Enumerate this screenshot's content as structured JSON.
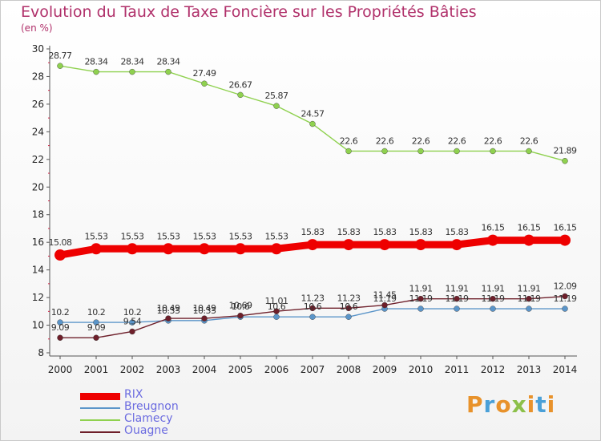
{
  "title": "Evolution du Taux de Taxe Foncière sur les Propriétés Bâties",
  "subtitle": "(en %)",
  "logo": "Proxiti",
  "chart_data": {
    "type": "line",
    "title": "Evolution du Taux de Taxe Foncière sur les Propriétés Bâties",
    "ylabel": "(en %)",
    "xlabel": "",
    "ylim": [
      8,
      30
    ],
    "yticks": [
      8,
      10,
      12,
      14,
      16,
      18,
      20,
      22,
      24,
      26,
      28,
      30
    ],
    "categories": [
      "2000",
      "2001",
      "2002",
      "2003",
      "2004",
      "2005",
      "2006",
      "2007",
      "2008",
      "2009",
      "2010",
      "2011",
      "2012",
      "2013",
      "2014"
    ],
    "series": [
      {
        "name": "RIX",
        "color": "#ee0000",
        "width": 9,
        "values": [
          15.08,
          15.53,
          15.53,
          15.53,
          15.53,
          15.53,
          15.53,
          15.83,
          15.83,
          15.83,
          15.83,
          15.83,
          16.15,
          16.15,
          16.15
        ],
        "labels": [
          "15.08",
          "15.53",
          "15.53",
          "15.53",
          "15.53",
          "15.53",
          "15.53",
          "15.83",
          "15.83",
          "15.83",
          "15.83",
          "15.83",
          "16.15",
          "16.15",
          "16.15"
        ]
      },
      {
        "name": "Breugnon",
        "color": "#5b95c9",
        "width": 1.4,
        "values": [
          10.2,
          10.2,
          10.2,
          10.33,
          10.33,
          10.6,
          10.6,
          10.6,
          10.6,
          11.19,
          11.19,
          11.19,
          11.19,
          11.19,
          11.19
        ],
        "labels": [
          "10.2",
          "10.2",
          "10.2",
          "10.33",
          "10.33",
          "10.6",
          "10.6",
          "10.6",
          "10.6",
          "11.19",
          "11.19",
          "11.19",
          "11.19",
          "11.19",
          "11.19"
        ]
      },
      {
        "name": "Clamecy",
        "color": "#8fd14f",
        "width": 1.4,
        "values": [
          28.77,
          28.34,
          28.34,
          28.34,
          27.49,
          26.67,
          25.87,
          24.57,
          22.6,
          22.6,
          22.6,
          22.6,
          22.6,
          22.6,
          21.89
        ],
        "labels": [
          "28.77",
          "28.34",
          "28.34",
          "28.34",
          "27.49",
          "26.67",
          "25.87",
          "24.57",
          "22.6",
          "22.6",
          "22.6",
          "22.6",
          "22.6",
          "22.6",
          "21.89"
        ]
      },
      {
        "name": "Ouagne",
        "color": "#6e1f2a",
        "width": 1.4,
        "values": [
          9.09,
          9.09,
          9.54,
          10.49,
          10.49,
          10.69,
          11.01,
          11.23,
          11.23,
          11.45,
          11.91,
          11.91,
          11.91,
          11.91,
          12.09
        ],
        "labels": [
          "9.09",
          "9.09",
          "9.54",
          "10.49",
          "10.49",
          "10.69",
          "11.01",
          "11.23",
          "11.23",
          "11.45",
          "11.91",
          "11.91",
          "11.91",
          "11.91",
          "12.09"
        ]
      }
    ]
  }
}
